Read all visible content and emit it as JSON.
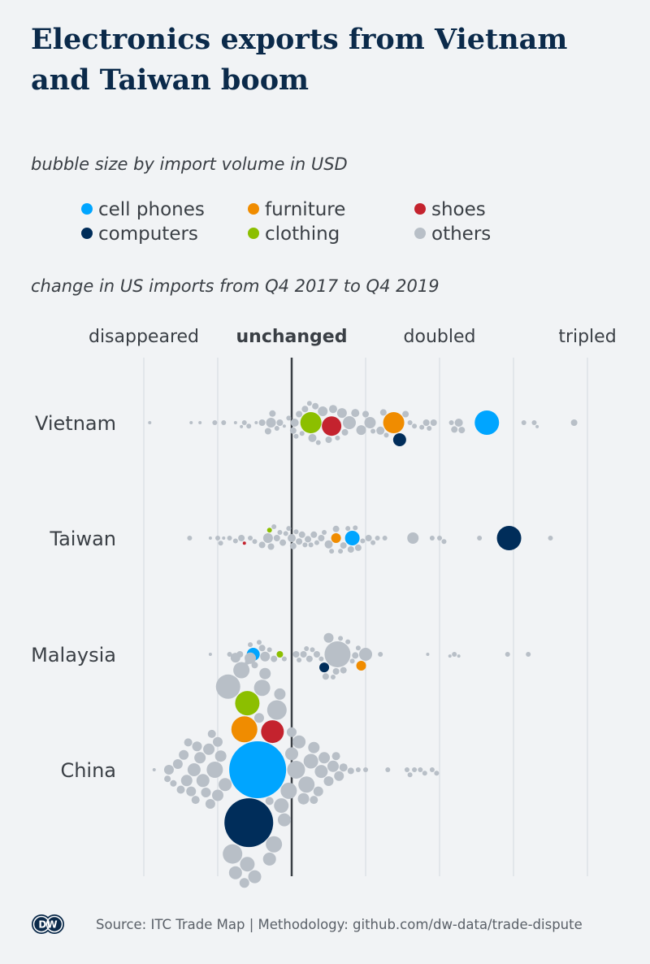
{
  "title": "Electronics exports from Vietnam and Taiwan boom",
  "subtitle": "bubble size by import volume in USD",
  "axis_subtitle": "change in US imports from Q4 2017 to Q4 2019",
  "legend": [
    {
      "label": "cell phones",
      "color": "#00a5ff"
    },
    {
      "label": "furniture",
      "color": "#f08c00"
    },
    {
      "label": "shoes",
      "color": "#c4232e"
    },
    {
      "label": "computers",
      "color": "#002d5a"
    },
    {
      "label": "clothing",
      "color": "#8cbf00"
    },
    {
      "label": "others",
      "color": "#b8bfc7"
    }
  ],
  "footer": {
    "logo": "DW",
    "source": "Source: ITC Trade Map | Methodology: github.com/dw-data/trade-dispute"
  },
  "chart_data": {
    "type": "scatter",
    "subtype": "beeswarm",
    "x_ticks": [
      {
        "value": 0,
        "label": "disappeared"
      },
      {
        "value": 0.5,
        "label": ""
      },
      {
        "value": 1,
        "label": "unchanged"
      },
      {
        "value": 1.5,
        "label": ""
      },
      {
        "value": 2,
        "label": "doubled"
      },
      {
        "value": 2.5,
        "label": ""
      },
      {
        "value": 3,
        "label": "tripled"
      }
    ],
    "xlim": [
      0,
      3.2
    ],
    "x_unit": "ratio of Q4 2019 to Q4 2017 imports",
    "size_unit": "relative import volume",
    "categories": [
      "Vietnam",
      "Taiwan",
      "Malaysia",
      "China"
    ],
    "highlighted": {
      "Vietnam": [
        [
          "clothing",
          1.13,
          169
        ],
        [
          "shoes",
          1.27,
          144
        ],
        [
          "furniture",
          1.69,
          169
        ],
        [
          "computers",
          1.73,
          64
        ],
        [
          "cell phones",
          2.32,
          225
        ]
      ],
      "Taiwan": [
        [
          "shoes",
          0.68,
          4
        ],
        [
          "clothing",
          0.85,
          9
        ],
        [
          "furniture",
          1.3,
          36
        ],
        [
          "cell phones",
          1.41,
          81
        ],
        [
          "computers",
          2.47,
          225
        ]
      ],
      "Malaysia": [
        [
          "cell phones",
          0.74,
          64
        ],
        [
          "clothing",
          0.92,
          16
        ],
        [
          "computers",
          1.22,
          36
        ],
        [
          "furniture",
          1.47,
          36
        ]
      ],
      "China": [
        [
          "shoes",
          0.87,
          196
        ],
        [
          "computers",
          0.71,
          900
        ],
        [
          "clothing",
          0.7,
          225
        ],
        [
          "furniture",
          0.68,
          256
        ],
        [
          "cell phones",
          0.77,
          1225
        ]
      ]
    },
    "others": {
      "Vietnam": [
        [
          0.04,
          4
        ],
        [
          0.32,
          4
        ],
        [
          0.38,
          4
        ],
        [
          0.48,
          9
        ],
        [
          0.54,
          9
        ],
        [
          0.62,
          4
        ],
        [
          0.66,
          4
        ],
        [
          0.68,
          9
        ],
        [
          0.71,
          9
        ],
        [
          0.76,
          4
        ],
        [
          0.8,
          16
        ],
        [
          0.84,
          16
        ],
        [
          0.86,
          36
        ],
        [
          0.87,
          16
        ],
        [
          0.9,
          9
        ],
        [
          0.92,
          16
        ],
        [
          0.95,
          4
        ],
        [
          0.98,
          9
        ],
        [
          1.01,
          16
        ],
        [
          1.02,
          25
        ],
        [
          1.03,
          9
        ],
        [
          1.05,
          16
        ],
        [
          1.07,
          9
        ],
        [
          1.09,
          16
        ],
        [
          1.12,
          9
        ],
        [
          1.14,
          25
        ],
        [
          1.16,
          16
        ],
        [
          1.18,
          9
        ],
        [
          1.21,
          36
        ],
        [
          1.25,
          16
        ],
        [
          1.28,
          25
        ],
        [
          1.31,
          9
        ],
        [
          1.34,
          36
        ],
        [
          1.36,
          16
        ],
        [
          1.39,
          64
        ],
        [
          1.43,
          25
        ],
        [
          1.47,
          36
        ],
        [
          1.5,
          16
        ],
        [
          1.53,
          49
        ],
        [
          1.55,
          9
        ],
        [
          1.6,
          25
        ],
        [
          1.62,
          16
        ],
        [
          1.64,
          9
        ],
        [
          1.77,
          16
        ],
        [
          1.8,
          9
        ],
        [
          1.83,
          9
        ],
        [
          1.88,
          9
        ],
        [
          1.91,
          16
        ],
        [
          1.93,
          9
        ],
        [
          1.96,
          16
        ],
        [
          2.08,
          9
        ],
        [
          2.1,
          16
        ],
        [
          2.13,
          25
        ],
        [
          2.15,
          16
        ],
        [
          2.57,
          9
        ],
        [
          2.64,
          9
        ],
        [
          2.66,
          4
        ],
        [
          2.91,
          16
        ]
      ],
      "Taiwan": [
        [
          0.31,
          9
        ],
        [
          0.45,
          4
        ],
        [
          0.5,
          9
        ],
        [
          0.52,
          9
        ],
        [
          0.54,
          4
        ],
        [
          0.58,
          9
        ],
        [
          0.62,
          9
        ],
        [
          0.66,
          16
        ],
        [
          0.72,
          9
        ],
        [
          0.75,
          9
        ],
        [
          0.8,
          16
        ],
        [
          0.84,
          36
        ],
        [
          0.86,
          16
        ],
        [
          0.88,
          9
        ],
        [
          0.9,
          16
        ],
        [
          0.92,
          9
        ],
        [
          0.94,
          16
        ],
        [
          0.96,
          9
        ],
        [
          0.98,
          9
        ],
        [
          1.0,
          25
        ],
        [
          1.01,
          16
        ],
        [
          1.03,
          9
        ],
        [
          1.05,
          16
        ],
        [
          1.07,
          16
        ],
        [
          1.09,
          9
        ],
        [
          1.11,
          16
        ],
        [
          1.13,
          9
        ],
        [
          1.15,
          16
        ],
        [
          1.17,
          9
        ],
        [
          1.2,
          16
        ],
        [
          1.22,
          9
        ],
        [
          1.25,
          25
        ],
        [
          1.27,
          9
        ],
        [
          1.3,
          16
        ],
        [
          1.33,
          9
        ],
        [
          1.35,
          16
        ],
        [
          1.38,
          9
        ],
        [
          1.4,
          16
        ],
        [
          1.43,
          9
        ],
        [
          1.45,
          16
        ],
        [
          1.48,
          9
        ],
        [
          1.52,
          16
        ],
        [
          1.55,
          9
        ],
        [
          1.58,
          9
        ],
        [
          1.63,
          9
        ],
        [
          1.82,
          49
        ],
        [
          1.95,
          9
        ],
        [
          2.0,
          9
        ],
        [
          2.03,
          9
        ],
        [
          2.27,
          9
        ],
        [
          2.75,
          9
        ]
      ],
      "Malaysia": [
        [
          0.45,
          4
        ],
        [
          0.58,
          9
        ],
        [
          0.62,
          9
        ],
        [
          0.65,
          16
        ],
        [
          0.7,
          9
        ],
        [
          0.72,
          9
        ],
        [
          0.75,
          16
        ],
        [
          0.78,
          9
        ],
        [
          0.8,
          16
        ],
        [
          0.82,
          36
        ],
        [
          0.85,
          9
        ],
        [
          0.88,
          16
        ],
        [
          0.95,
          9
        ],
        [
          1.03,
          16
        ],
        [
          1.05,
          9
        ],
        [
          1.08,
          16
        ],
        [
          1.1,
          9
        ],
        [
          1.12,
          16
        ],
        [
          1.14,
          9
        ],
        [
          1.17,
          16
        ],
        [
          1.2,
          9
        ],
        [
          1.23,
          16
        ],
        [
          1.25,
          36
        ],
        [
          1.28,
          9
        ],
        [
          1.3,
          16
        ],
        [
          1.31,
          256
        ],
        [
          1.33,
          9
        ],
        [
          1.35,
          16
        ],
        [
          1.38,
          9
        ],
        [
          1.41,
          9
        ],
        [
          1.43,
          16
        ],
        [
          1.45,
          9
        ],
        [
          1.5,
          64
        ],
        [
          1.6,
          9
        ],
        [
          1.92,
          4
        ],
        [
          2.07,
          4
        ],
        [
          2.1,
          9
        ],
        [
          2.13,
          4
        ],
        [
          2.46,
          9
        ],
        [
          2.6,
          9
        ]
      ],
      "China": [
        [
          0.07,
          4
        ],
        [
          0.16,
          16
        ],
        [
          0.17,
          36
        ],
        [
          0.2,
          16
        ],
        [
          0.23,
          36
        ],
        [
          0.25,
          25
        ],
        [
          0.27,
          36
        ],
        [
          0.29,
          49
        ],
        [
          0.3,
          25
        ],
        [
          0.32,
          36
        ],
        [
          0.34,
          64
        ],
        [
          0.36,
          36
        ],
        [
          0.38,
          49
        ],
        [
          0.4,
          64
        ],
        [
          0.42,
          36
        ],
        [
          0.44,
          49
        ],
        [
          0.46,
          25
        ],
        [
          0.48,
          100
        ],
        [
          0.5,
          36
        ],
        [
          0.52,
          49
        ],
        [
          0.55,
          64
        ],
        [
          0.57,
          225
        ],
        [
          0.6,
          144
        ],
        [
          0.62,
          64
        ],
        [
          0.64,
          49
        ],
        [
          0.66,
          100
        ],
        [
          0.68,
          36
        ],
        [
          0.72,
          49
        ],
        [
          0.75,
          64
        ],
        [
          0.8,
          100
        ],
        [
          0.82,
          49
        ],
        [
          0.85,
          64
        ],
        [
          0.88,
          100
        ],
        [
          0.9,
          144
        ],
        [
          0.93,
          81
        ],
        [
          0.95,
          64
        ],
        [
          0.98,
          100
        ],
        [
          1.0,
          64
        ],
        [
          1.03,
          121
        ],
        [
          1.05,
          64
        ],
        [
          1.08,
          49
        ],
        [
          1.1,
          100
        ],
        [
          1.13,
          81
        ],
        [
          1.15,
          49
        ],
        [
          1.18,
          36
        ],
        [
          1.2,
          64
        ],
        [
          1.22,
          49
        ],
        [
          1.25,
          36
        ],
        [
          1.28,
          49
        ],
        [
          1.3,
          25
        ],
        [
          1.32,
          36
        ],
        [
          1.35,
          25
        ],
        [
          1.4,
          16
        ],
        [
          1.45,
          9
        ],
        [
          1.5,
          9
        ],
        [
          1.65,
          9
        ],
        [
          1.78,
          9
        ],
        [
          1.8,
          9
        ],
        [
          1.83,
          9
        ],
        [
          1.87,
          9
        ],
        [
          1.9,
          9
        ],
        [
          1.95,
          9
        ],
        [
          1.98,
          9
        ],
        [
          0.5,
          49
        ],
        [
          0.45,
          36
        ],
        [
          0.7,
          81
        ],
        [
          0.78,
          36
        ],
        [
          0.35,
          25
        ],
        [
          0.92,
          49
        ],
        [
          1.0,
          36
        ],
        [
          0.62,
          36
        ],
        [
          0.85,
          25
        ],
        [
          1.15,
          25
        ]
      ]
    }
  }
}
